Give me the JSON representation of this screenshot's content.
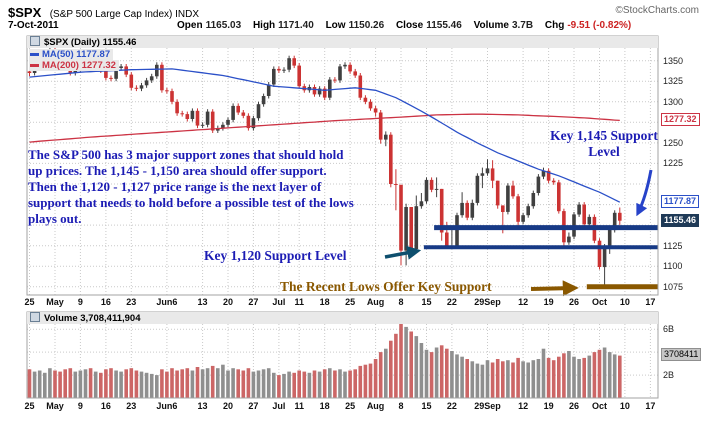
{
  "header": {
    "symbol": "$SPX",
    "symbol_desc": "(S&P 500 Large Cap Index) INDX",
    "source": "©StockCharts.com",
    "date": "7-Oct-2011",
    "quote": {
      "open_label": "Open",
      "open": "1165.03",
      "high_label": "High",
      "high": "1171.40",
      "low_label": "Low",
      "low": "1150.26",
      "close_label": "Close",
      "close": "1155.46",
      "volume_label": "Volume",
      "volume": "3.7B",
      "chg_label": "Chg",
      "chg": "-9.51 (-0.82%)"
    }
  },
  "legend": {
    "main": "$SPX (Daily) 1155.46",
    "ma50": "MA(50) 1177.87",
    "ma200": "MA(200) 1277.32"
  },
  "volume_legend": "Volume 3,708,411,904",
  "annotations": {
    "paragraph": "The S&P 500 has 3 major support zones that should hold up prices. The 1,145 - 1,150 area should offer support. Then the 1,120 - 1,127 price range is the next layer of support that needs to hold before a possible test of the lows plays out.",
    "key1145": "Key 1,145 Support Level",
    "key1120": "Key 1,120 Support Level",
    "recent_lows": "The Recent Lows Offer Key Support"
  },
  "colors": {
    "candle_up": "#404040",
    "candle_down": "#cc3333",
    "volume_up": "#8f8f8f",
    "volume_down": "#cc6666",
    "ma50": "#2b50c8",
    "ma200": "#cc3344",
    "support_navy": "#173a86",
    "support_brown": "#8a5800",
    "annotation_blue": "#1c1cb4",
    "annotation_brown": "#8a5800",
    "arrow_blue": "#2743c9",
    "arrow_teal": "#0e4f6e",
    "last_price_box_bg": "#1f3a57",
    "grid": "#c9c9c9"
  },
  "chart_data": {
    "type": "candlestick",
    "symbol": "$SPX",
    "timeframe": "Daily",
    "title": "$SPX Daily with MA(50), MA(200) and Volume",
    "price_range": [
      1065,
      1380
    ],
    "total_slots": 124,
    "x_ticks": [
      {
        "label": "25",
        "i": 0
      },
      {
        "label": "May",
        "i": 5
      },
      {
        "label": "9",
        "i": 10
      },
      {
        "label": "16",
        "i": 15
      },
      {
        "label": "23",
        "i": 20
      },
      {
        "label": "Jun6",
        "i": 27
      },
      {
        "label": "13",
        "i": 34
      },
      {
        "label": "20",
        "i": 39
      },
      {
        "label": "27",
        "i": 44
      },
      {
        "label": "Jul",
        "i": 49
      },
      {
        "label": "11",
        "i": 53
      },
      {
        "label": "18",
        "i": 58
      },
      {
        "label": "25",
        "i": 63
      },
      {
        "label": "Aug",
        "i": 68
      },
      {
        "label": "8",
        "i": 73
      },
      {
        "label": "15",
        "i": 78
      },
      {
        "label": "22",
        "i": 83
      },
      {
        "label": "29Sep",
        "i": 90
      },
      {
        "label": "12",
        "i": 97
      },
      {
        "label": "19",
        "i": 102
      },
      {
        "label": "26",
        "i": 107
      },
      {
        "label": "Oct",
        "i": 112
      },
      {
        "label": "10",
        "i": 117
      },
      {
        "label": "17",
        "i": 122
      }
    ],
    "y_ticks_plain": [
      1350,
      1325,
      1300,
      1250,
      1225,
      1125,
      1100,
      1075
    ],
    "price_gridlines": [
      1075,
      1100,
      1125,
      1150,
      1175,
      1200,
      1225,
      1250,
      1275,
      1300,
      1325,
      1350
    ],
    "y_special": [
      {
        "label": "1277.32",
        "price": 1277.32,
        "style": "ma200box",
        "name": "ma200-axis-label"
      },
      {
        "label": "1177.87",
        "price": 1177.87,
        "style": "ma50box",
        "name": "ma50-axis-label"
      },
      {
        "label": "1155.46",
        "price": 1155.46,
        "style": "lastbox",
        "name": "last-price-label"
      }
    ],
    "volume_ticks": [
      {
        "label": "6B",
        "v": 6
      },
      {
        "label": "2B",
        "v": 2
      }
    ],
    "volume_gridlines": [
      2,
      4,
      6
    ],
    "volume_current": {
      "label": "3708411",
      "v": 3.708
    },
    "volume_scale_max": 7.5,
    "candles": [
      [
        1337,
        1341,
        1331,
        1335
      ],
      [
        1335,
        1350,
        1332,
        1347
      ],
      [
        1347,
        1359,
        1344,
        1356
      ],
      [
        1356,
        1363,
        1353,
        1360
      ],
      [
        1360,
        1367,
        1357,
        1364
      ],
      [
        1364,
        1367,
        1358,
        1361
      ],
      [
        1361,
        1364,
        1354,
        1357
      ],
      [
        1357,
        1360,
        1344,
        1347
      ],
      [
        1347,
        1350,
        1332,
        1335
      ],
      [
        1335,
        1343,
        1332,
        1340
      ],
      [
        1340,
        1349,
        1337,
        1346
      ],
      [
        1346,
        1360,
        1343,
        1357
      ],
      [
        1357,
        1360,
        1339,
        1342
      ],
      [
        1342,
        1351,
        1339,
        1348
      ],
      [
        1348,
        1351,
        1335,
        1338
      ],
      [
        1338,
        1341,
        1326,
        1329
      ],
      [
        1329,
        1332,
        1325,
        1328
      ],
      [
        1328,
        1344,
        1325,
        1341
      ],
      [
        1341,
        1346,
        1338,
        1343
      ],
      [
        1343,
        1346,
        1330,
        1333
      ],
      [
        1333,
        1336,
        1314,
        1317
      ],
      [
        1317,
        1320,
        1313,
        1316
      ],
      [
        1316,
        1323,
        1313,
        1320
      ],
      [
        1320,
        1329,
        1317,
        1326
      ],
      [
        1326,
        1334,
        1323,
        1331
      ],
      [
        1331,
        1348,
        1328,
        1345
      ],
      [
        1345,
        1348,
        1311,
        1314
      ],
      [
        1314,
        1317,
        1310,
        1313
      ],
      [
        1313,
        1316,
        1297,
        1300
      ],
      [
        1300,
        1303,
        1283,
        1286
      ],
      [
        1286,
        1289,
        1282,
        1285
      ],
      [
        1285,
        1288,
        1276,
        1279
      ],
      [
        1279,
        1292,
        1276,
        1289
      ],
      [
        1289,
        1292,
        1268,
        1271
      ],
      [
        1271,
        1275,
        1268,
        1272
      ],
      [
        1272,
        1291,
        1269,
        1288
      ],
      [
        1288,
        1291,
        1262,
        1265
      ],
      [
        1265,
        1271,
        1262,
        1268
      ],
      [
        1268,
        1275,
        1265,
        1272
      ],
      [
        1272,
        1281,
        1269,
        1278
      ],
      [
        1278,
        1298,
        1275,
        1295
      ],
      [
        1295,
        1298,
        1284,
        1287
      ],
      [
        1287,
        1290,
        1280,
        1283
      ],
      [
        1283,
        1286,
        1265,
        1268
      ],
      [
        1268,
        1283,
        1265,
        1280
      ],
      [
        1280,
        1300,
        1277,
        1297
      ],
      [
        1297,
        1310,
        1294,
        1307
      ],
      [
        1307,
        1324,
        1304,
        1321
      ],
      [
        1321,
        1343,
        1318,
        1340
      ],
      [
        1340,
        1343,
        1335,
        1338
      ],
      [
        1338,
        1342,
        1335,
        1339
      ],
      [
        1339,
        1356,
        1336,
        1353
      ],
      [
        1353,
        1356,
        1341,
        1344
      ],
      [
        1344,
        1347,
        1316,
        1319
      ],
      [
        1319,
        1322,
        1311,
        1314
      ],
      [
        1314,
        1321,
        1311,
        1318
      ],
      [
        1318,
        1321,
        1306,
        1309
      ],
      [
        1309,
        1319,
        1306,
        1316
      ],
      [
        1316,
        1319,
        1302,
        1305
      ],
      [
        1305,
        1330,
        1302,
        1327
      ],
      [
        1327,
        1330,
        1323,
        1326
      ],
      [
        1326,
        1346,
        1323,
        1343
      ],
      [
        1343,
        1348,
        1340,
        1345
      ],
      [
        1345,
        1348,
        1334,
        1337
      ],
      [
        1337,
        1340,
        1329,
        1332
      ],
      [
        1332,
        1335,
        1302,
        1305
      ],
      [
        1305,
        1308,
        1297,
        1300
      ],
      [
        1300,
        1303,
        1289,
        1292
      ],
      [
        1292,
        1295,
        1282,
        1287
      ],
      [
        1287,
        1290,
        1249,
        1254
      ],
      [
        1254,
        1264,
        1246,
        1260
      ],
      [
        1260,
        1263,
        1196,
        1200
      ],
      [
        1200,
        1218,
        1168,
        1199
      ],
      [
        1199,
        1199,
        1101,
        1119
      ],
      [
        1119,
        1176,
        1101,
        1172
      ],
      [
        1172,
        1172,
        1112,
        1121
      ],
      [
        1121,
        1186,
        1118,
        1173
      ],
      [
        1173,
        1189,
        1170,
        1179
      ],
      [
        1179,
        1208,
        1176,
        1205
      ],
      [
        1205,
        1208,
        1190,
        1193
      ],
      [
        1193,
        1208,
        1184,
        1194
      ],
      [
        1194,
        1194,
        1131,
        1141
      ],
      [
        1141,
        1154,
        1121,
        1124
      ],
      [
        1124,
        1145,
        1121,
        1124
      ],
      [
        1124,
        1165,
        1121,
        1162
      ],
      [
        1162,
        1190,
        1159,
        1177
      ],
      [
        1177,
        1180,
        1156,
        1159
      ],
      [
        1159,
        1181,
        1156,
        1177
      ],
      [
        1177,
        1213,
        1174,
        1210
      ],
      [
        1210,
        1220,
        1195,
        1213
      ],
      [
        1213,
        1230,
        1210,
        1219
      ],
      [
        1219,
        1229,
        1195,
        1204
      ],
      [
        1204,
        1204,
        1170,
        1174
      ],
      [
        1174,
        1174,
        1140,
        1166
      ],
      [
        1166,
        1201,
        1163,
        1198
      ],
      [
        1198,
        1204,
        1182,
        1185
      ],
      [
        1185,
        1188,
        1148,
        1154
      ],
      [
        1154,
        1165,
        1151,
        1162
      ],
      [
        1162,
        1176,
        1159,
        1173
      ],
      [
        1173,
        1192,
        1170,
        1189
      ],
      [
        1189,
        1212,
        1186,
        1209
      ],
      [
        1209,
        1220,
        1206,
        1216
      ],
      [
        1216,
        1219,
        1201,
        1204
      ],
      [
        1204,
        1207,
        1199,
        1202
      ],
      [
        1202,
        1205,
        1164,
        1167
      ],
      [
        1167,
        1170,
        1121,
        1129
      ],
      [
        1129,
        1141,
        1126,
        1136
      ],
      [
        1136,
        1166,
        1133,
        1163
      ],
      [
        1163,
        1178,
        1160,
        1175
      ],
      [
        1175,
        1178,
        1148,
        1151
      ],
      [
        1151,
        1163,
        1148,
        1160
      ],
      [
        1160,
        1163,
        1128,
        1131
      ],
      [
        1131,
        1134,
        1096,
        1099
      ],
      [
        1099,
        1127,
        1075,
        1124
      ],
      [
        1124,
        1147,
        1115,
        1144
      ],
      [
        1144,
        1168,
        1141,
        1165
      ],
      [
        1165.03,
        1171.4,
        1150.26,
        1155.46
      ]
    ],
    "volumes": [
      2.5,
      2.3,
      2.4,
      2.2,
      2.6,
      2.4,
      2.3,
      2.5,
      2.6,
      2.3,
      2.4,
      2.5,
      2.6,
      2.3,
      2.2,
      2.5,
      2.6,
      2.4,
      2.3,
      2.5,
      2.6,
      2.4,
      2.3,
      2.2,
      2.1,
      2.0,
      2.5,
      2.3,
      2.6,
      2.4,
      2.5,
      2.6,
      2.4,
      2.7,
      2.5,
      2.6,
      2.8,
      2.6,
      2.9,
      2.4,
      2.6,
      2.5,
      2.4,
      2.6,
      2.3,
      2.4,
      2.5,
      2.6,
      2.2,
      2.0,
      2.1,
      2.3,
      2.2,
      2.4,
      2.3,
      2.2,
      2.4,
      2.3,
      2.5,
      2.6,
      2.4,
      2.5,
      2.3,
      2.4,
      2.5,
      2.8,
      2.9,
      3.0,
      3.4,
      4.0,
      4.3,
      5.0,
      5.6,
      6.6,
      6.2,
      5.8,
      5.4,
      4.8,
      4.2,
      4.0,
      4.4,
      4.6,
      4.3,
      4.1,
      3.8,
      3.6,
      3.4,
      3.2,
      3.0,
      2.9,
      3.3,
      3.1,
      3.4,
      3.2,
      3.3,
      3.1,
      3.5,
      3.2,
      3.1,
      3.3,
      3.4,
      4.3,
      3.5,
      3.3,
      3.6,
      3.9,
      4.1,
      3.6,
      3.4,
      3.5,
      3.7,
      4.0,
      4.2,
      4.4,
      4.0,
      3.8,
      3.7
    ],
    "ma50_points": [
      [
        0,
        1330
      ],
      [
        10,
        1336
      ],
      [
        20,
        1339
      ],
      [
        28,
        1340
      ],
      [
        38,
        1332
      ],
      [
        48,
        1319
      ],
      [
        58,
        1314
      ],
      [
        64,
        1317
      ],
      [
        68,
        1314
      ],
      [
        72,
        1305
      ],
      [
        76,
        1292
      ],
      [
        80,
        1278
      ],
      [
        84,
        1263
      ],
      [
        88,
        1250
      ],
      [
        92,
        1238
      ],
      [
        96,
        1228
      ],
      [
        100,
        1218
      ],
      [
        104,
        1210
      ],
      [
        108,
        1200
      ],
      [
        112,
        1190
      ],
      [
        116,
        1177.87
      ]
    ],
    "ma200_points": [
      [
        0,
        1251
      ],
      [
        12,
        1257
      ],
      [
        24,
        1262
      ],
      [
        36,
        1267
      ],
      [
        48,
        1272
      ],
      [
        60,
        1277
      ],
      [
        72,
        1281
      ],
      [
        80,
        1284
      ],
      [
        88,
        1285
      ],
      [
        96,
        1284
      ],
      [
        104,
        1282
      ],
      [
        110,
        1280
      ],
      [
        116,
        1277.32
      ]
    ],
    "support_lines": [
      {
        "price": 1147,
        "from": 80,
        "to": 124,
        "color": "#173a86",
        "width": 5,
        "name": "support-line-1145"
      },
      {
        "price": 1123,
        "from": 78,
        "to": 124,
        "color": "#173a86",
        "width": 4,
        "name": "support-line-1120"
      },
      {
        "price": 1075,
        "from": 110,
        "to": 124,
        "color": "#8a5800",
        "width": 5,
        "name": "support-line-recent-lows"
      }
    ]
  }
}
